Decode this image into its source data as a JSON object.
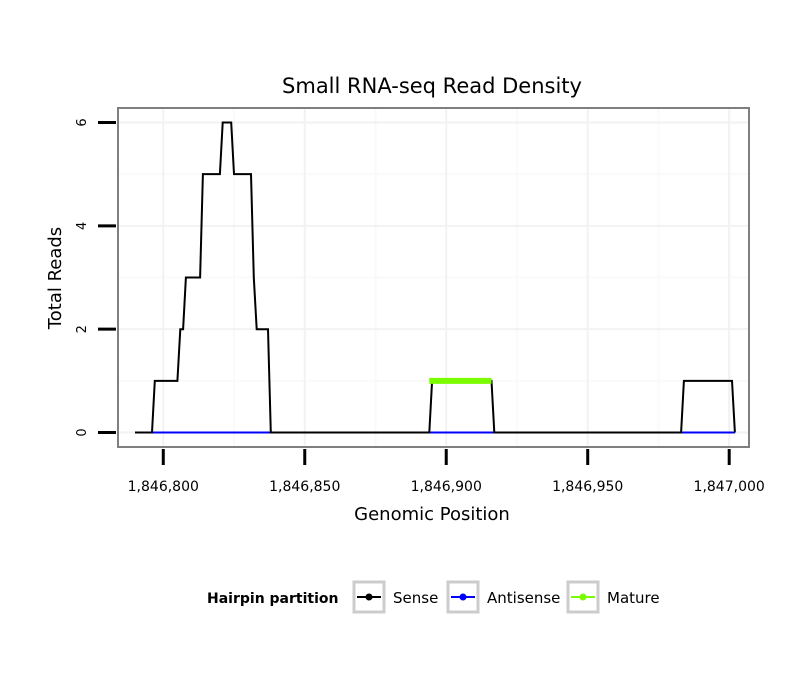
{
  "chart_data": {
    "type": "line",
    "title": "Small RNA-seq Read Density",
    "xlabel": "Genomic Position",
    "ylabel": "Total Reads",
    "xlim": [
      1846784,
      1847007
    ],
    "ylim": [
      -0.28,
      6.28
    ],
    "x_ticks": [
      1846800,
      1846850,
      1846900,
      1846950,
      1847000
    ],
    "x_tick_labels": [
      "1,846,800",
      "1,846,850",
      "1,846,900",
      "1,846,950",
      "1,847,000"
    ],
    "y_ticks": [
      0,
      2,
      4,
      6
    ],
    "y_tick_labels": [
      "0",
      "2",
      "4",
      "6"
    ],
    "x_minor_gridlines": [
      1846825,
      1846875,
      1846925,
      1846975
    ],
    "y_minor_gridlines": [
      1,
      3,
      5
    ],
    "grid": true,
    "legend": {
      "title": "Hairpin partition",
      "position": "bottom",
      "entries": [
        "Sense",
        "Antisense",
        "Mature"
      ]
    },
    "series": [
      {
        "name": "Sense",
        "color": "#000000",
        "x": [
          1846790,
          1846796,
          1846797,
          1846805,
          1846806,
          1846807,
          1846808,
          1846813,
          1846814,
          1846819,
          1846820,
          1846821,
          1846824,
          1846825,
          1846826,
          1846831,
          1846832,
          1846833,
          1846837,
          1846838,
          1846894,
          1846895,
          1846916,
          1846917,
          1846983,
          1846984,
          1847001,
          1847002
        ],
        "values": [
          0,
          0,
          1,
          1,
          2,
          2,
          3,
          3,
          5,
          5,
          5,
          6,
          6,
          5,
          5,
          5,
          3,
          2,
          2,
          0,
          0,
          1,
          1,
          0,
          0,
          1,
          1,
          0
        ]
      },
      {
        "name": "Antisense",
        "color": "#0000ff",
        "x": [
          1846796,
          1847002
        ],
        "values": [
          0,
          0
        ]
      },
      {
        "name": "Mature",
        "color": "#7cfc00",
        "x": [
          1846894,
          1846916
        ],
        "values": [
          1,
          1
        ]
      }
    ]
  }
}
